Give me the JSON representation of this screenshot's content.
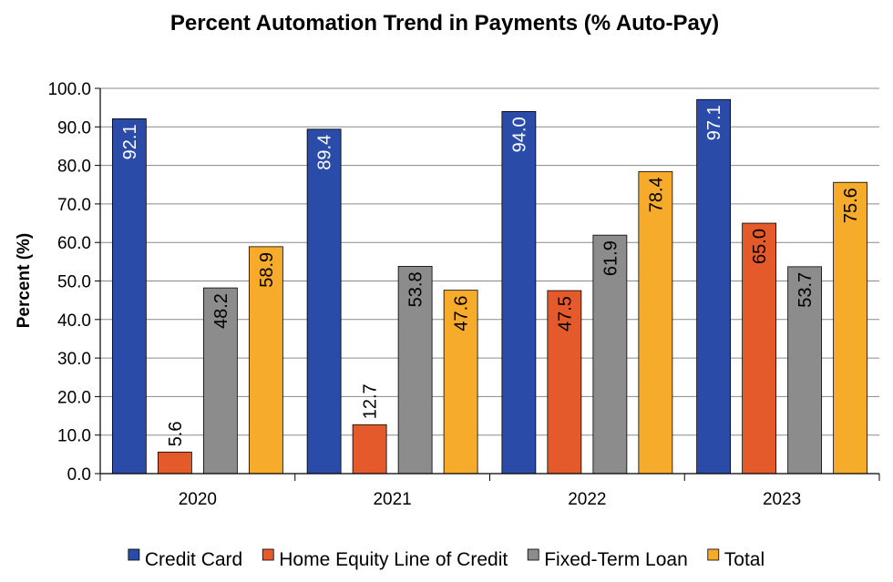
{
  "chart_data": {
    "type": "bar",
    "title": "Percent Automation Trend in Payments (% Auto-Pay)",
    "xlabel": "",
    "ylabel": "Percent (%)",
    "ylim": [
      0,
      100
    ],
    "yticks": [
      "0.0",
      "10.0",
      "20.0",
      "30.0",
      "40.0",
      "50.0",
      "60.0",
      "70.0",
      "80.0",
      "90.0",
      "100.0"
    ],
    "grid": true,
    "legend_position": "bottom",
    "categories": [
      "2020",
      "2021",
      "2022",
      "2023"
    ],
    "series": [
      {
        "name": "Credit Card",
        "color": "#2a4ca8",
        "label_color": "#ffffff",
        "values": [
          92.1,
          89.4,
          94.0,
          97.1
        ],
        "labels": [
          "92.1",
          "89.4",
          "94.0",
          "97.1"
        ]
      },
      {
        "name": "Home Equity Line of Credit",
        "color": "#e55a2a",
        "label_color": "#000000",
        "values": [
          5.6,
          12.7,
          47.5,
          65.0
        ],
        "labels": [
          "5.6",
          "12.7",
          "47.5",
          "65.0"
        ]
      },
      {
        "name": "Fixed-Term Loan",
        "color": "#8c8c8c",
        "label_color": "#000000",
        "values": [
          48.2,
          53.8,
          61.9,
          53.7
        ],
        "labels": [
          "48.2",
          "53.8",
          "61.9",
          "53.7"
        ]
      },
      {
        "name": "Total",
        "color": "#f7ab2a",
        "label_color": "#000000",
        "values": [
          58.9,
          47.6,
          78.4,
          75.6
        ],
        "labels": [
          "58.9",
          "47.6",
          "78.4",
          "75.6"
        ]
      }
    ]
  }
}
